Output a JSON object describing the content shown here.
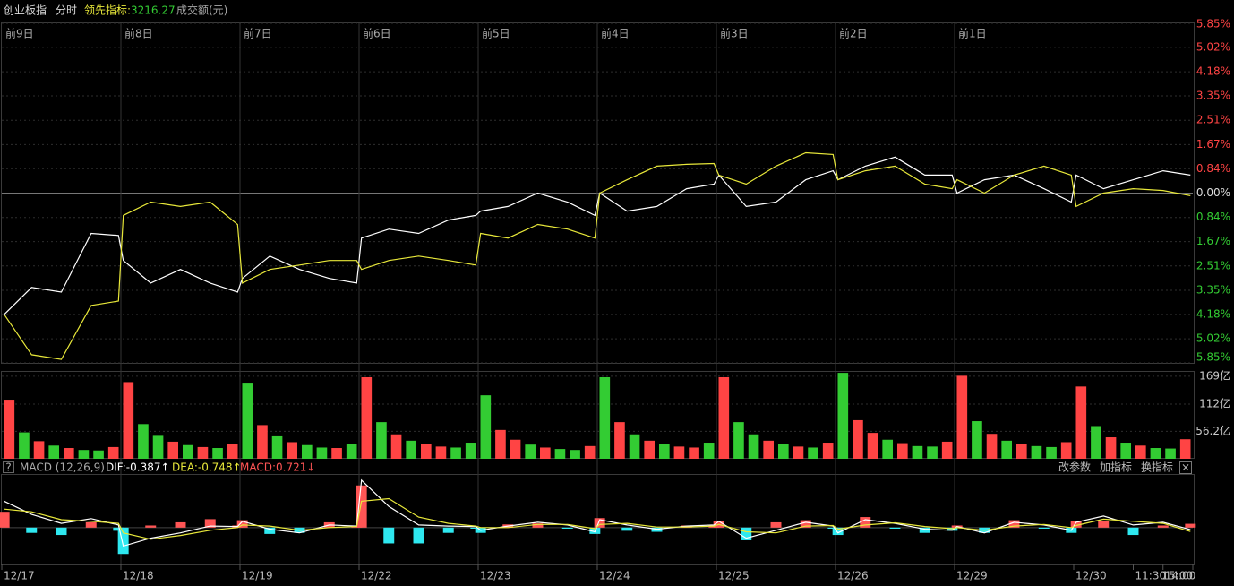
{
  "header": {
    "index_name": "创业板指",
    "mode": "分时",
    "leading_label": "领先指标:",
    "leading_value": "3216.27",
    "amount_label": "成交额(元)"
  },
  "toolbar": {
    "help": "?",
    "buttons": [
      "改参数",
      "加指标",
      "换指标"
    ],
    "close": "×"
  },
  "chart_data": [
    {
      "type": "line",
      "x": [
        0.02,
        0.25,
        0.5,
        0.75,
        0.98,
        1.02,
        1.25,
        1.5,
        1.75,
        1.98,
        2.02,
        2.25,
        2.5,
        2.75,
        2.98,
        3.02,
        3.25,
        3.5,
        3.75,
        3.98,
        4.02,
        4.25,
        4.5,
        4.75,
        4.98,
        5.02,
        5.25,
        5.5,
        5.75,
        5.98,
        6.02,
        6.25,
        6.5,
        6.75,
        6.98,
        7.02,
        7.25,
        7.5,
        7.75,
        7.98,
        8.02,
        8.25,
        8.5,
        8.75,
        8.98,
        9.02,
        9.25,
        9.5,
        9.75,
        9.98
      ],
      "series": [
        {
          "color": "#ffffff",
          "values": [
            -4.18,
            -3.25,
            -3.41,
            -1.39,
            -1.46,
            -2.32,
            -3.1,
            -2.63,
            -3.1,
            -3.41,
            -2.94,
            -2.17,
            -2.63,
            -2.94,
            -3.1,
            -1.55,
            -1.24,
            -1.39,
            -0.93,
            -0.77,
            -0.62,
            -0.46,
            0,
            -0.31,
            -0.77,
            0,
            -0.62,
            -0.46,
            0.15,
            0.31,
            0.62,
            -0.46,
            -0.31,
            0.46,
            0.77,
            0.46,
            0.93,
            1.24,
            0.62,
            0.62,
            0,
            0.46,
            0.62,
            0.15,
            -0.31,
            0.62,
            0.15,
            0.46,
            0.77,
            0.62
          ]
        },
        {
          "color": "#e8e83a",
          "values": [
            -4.18,
            -5.57,
            -5.73,
            -3.87,
            -3.72,
            -0.77,
            -0.31,
            -0.46,
            -0.31,
            -1.08,
            -3.1,
            -2.63,
            -2.48,
            -2.32,
            -2.32,
            -2.63,
            -2.32,
            -2.17,
            -2.32,
            -2.48,
            -1.39,
            -1.55,
            -1.08,
            -1.24,
            -1.55,
            0,
            0.46,
            0.93,
            0.99,
            1.02,
            0.62,
            0.31,
            0.93,
            1.39,
            1.33,
            0.46,
            0.77,
            0.93,
            0.31,
            0.15,
            0.46,
            0,
            0.62,
            0.93,
            0.62,
            -0.46,
            0,
            0.15,
            0.09,
            -0.09
          ]
        }
      ],
      "xlim": [
        0,
        10
      ],
      "xticks": [
        {
          "value": 0,
          "label": "前9日"
        },
        {
          "value": 1,
          "label": "前8日"
        },
        {
          "value": 2,
          "label": "前7日"
        },
        {
          "value": 3,
          "label": "前6日"
        },
        {
          "value": 4,
          "label": "前5日"
        },
        {
          "value": 5,
          "label": "前4日"
        },
        {
          "value": 6,
          "label": "前3日"
        },
        {
          "value": 7,
          "label": "前2日"
        },
        {
          "value": 8,
          "label": "前1日"
        }
      ],
      "ylim": [
        -5.85,
        5.85
      ],
      "yticks": [
        {
          "value": 5.85,
          "label": "5.85%"
        },
        {
          "value": 5.02,
          "label": "5.02%"
        },
        {
          "value": 4.18,
          "label": "4.18%"
        },
        {
          "value": 3.35,
          "label": "3.35%"
        },
        {
          "value": 2.51,
          "label": "2.51%"
        },
        {
          "value": 1.67,
          "label": "1.67%"
        },
        {
          "value": 0.84,
          "label": "0.84%"
        },
        {
          "value": 0,
          "label": "0.00%"
        },
        {
          "value": -0.84,
          "label": "0.84%"
        },
        {
          "value": -1.67,
          "label": "1.67%"
        },
        {
          "value": -2.51,
          "label": "2.51%"
        },
        {
          "value": -3.35,
          "label": "3.35%"
        },
        {
          "value": -4.18,
          "label": "4.18%"
        },
        {
          "value": -5.02,
          "label": "5.02%"
        },
        {
          "value": -5.85,
          "label": "5.85%"
        }
      ],
      "grid": true
    },
    {
      "type": "bar",
      "values": [
        121,
        54,
        36,
        27,
        22,
        18,
        17,
        24,
        157,
        71,
        47,
        35,
        28,
        24,
        22,
        31,
        154,
        69,
        46,
        34,
        28,
        23,
        22,
        31,
        167,
        75,
        50,
        37,
        30,
        25,
        23,
        33,
        130,
        59,
        39,
        29,
        23,
        20,
        18,
        26,
        167,
        75,
        50,
        37,
        30,
        25,
        23,
        33,
        167,
        75,
        50,
        37,
        30,
        25,
        23,
        33,
        176,
        79,
        53,
        39,
        32,
        26,
        25,
        35,
        170,
        77,
        51,
        37,
        31,
        26,
        24,
        34,
        148,
        67,
        44,
        33,
        27,
        22,
        21,
        40
      ],
      "colors": [
        "#f44",
        "#3c3",
        "#f44",
        "#3c3",
        "#f44",
        "#3c3",
        "#3c3",
        "#f44",
        "#f44",
        "#3c3",
        "#3c3",
        "#f44",
        "#3c3",
        "#f44",
        "#3c3",
        "#f44",
        "#3c3",
        "#f44",
        "#3c3",
        "#f44",
        "#3c3",
        "#3c3",
        "#f44",
        "#3c3",
        "#f44",
        "#3c3",
        "#f44",
        "#3c3",
        "#f44",
        "#f44",
        "#3c3",
        "#3c3",
        "#3c3",
        "#f44",
        "#f44",
        "#3c3",
        "#f44",
        "#3c3",
        "#3c3",
        "#f44",
        "#3c3",
        "#f44",
        "#3c3",
        "#f44",
        "#3c3",
        "#f44",
        "#f44",
        "#3c3",
        "#f44",
        "#3c3",
        "#3c3",
        "#f44",
        "#3c3",
        "#f44",
        "#3c3",
        "#f44",
        "#3c3",
        "#f44",
        "#f44",
        "#3c3",
        "#f44",
        "#3c3",
        "#3c3",
        "#f44",
        "#f44",
        "#3c3",
        "#f44",
        "#3c3",
        "#f44",
        "#3c3",
        "#3c3",
        "#f44",
        "#f44",
        "#3c3",
        "#f44",
        "#3c3",
        "#f44",
        "#3c3",
        "#3c3",
        "#f44"
      ],
      "ylim": [
        0,
        178
      ],
      "yticks": [
        {
          "value": 169,
          "label": "169亿"
        },
        {
          "value": 112,
          "label": "112亿"
        },
        {
          "value": 56.2,
          "label": "56.2亿"
        }
      ]
    },
    {
      "type": "line",
      "title": "MACD (12,26,9)",
      "legend_texts": [
        "DIF:-0.387↑",
        "DEA:-0.748↑",
        "MACD:0.721↓"
      ],
      "x": [
        0.02,
        0.25,
        0.5,
        0.75,
        0.98,
        1.02,
        1.25,
        1.5,
        1.75,
        1.98,
        2.02,
        2.25,
        2.5,
        2.75,
        2.98,
        3.02,
        3.25,
        3.5,
        3.75,
        3.98,
        4.02,
        4.25,
        4.5,
        4.75,
        4.98,
        5.02,
        5.25,
        5.5,
        5.75,
        5.98,
        6.02,
        6.25,
        6.5,
        6.75,
        6.98,
        7.02,
        7.25,
        7.5,
        7.75,
        7.98,
        8.02,
        8.25,
        8.5,
        8.75,
        8.98,
        9.02,
        9.25,
        9.5,
        9.75,
        9.98
      ],
      "series": [
        {
          "type": "line",
          "color": "#ffffff",
          "values": [
            5.0,
            2.5,
            0.8,
            1.7,
            0.5,
            -3.5,
            -2.0,
            -1.0,
            0.3,
            0.2,
            1.2,
            -0.3,
            -1.0,
            0.5,
            0.3,
            9.0,
            4.0,
            0.5,
            0.3,
            0.2,
            -0.5,
            0.3,
            1.0,
            0.5,
            -0.8,
            1.5,
            0.5,
            -0.3,
            0.3,
            0.5,
            1.2,
            -2.0,
            -0.5,
            1.0,
            0.3,
            -1.0,
            1.5,
            0.8,
            -0.3,
            -0.5,
            0.2,
            -1.0,
            1.0,
            0.5,
            -0.5,
            1.0,
            2.2,
            0.5,
            1.0,
            -0.387
          ]
        },
        {
          "type": "line",
          "color": "#e8e83a",
          "values": [
            3.5,
            3.0,
            1.5,
            1.2,
            0.8,
            -1.0,
            -2.2,
            -1.5,
            -0.5,
            0.0,
            0.5,
            0.3,
            -0.5,
            0.0,
            0.2,
            5.0,
            5.5,
            2.0,
            0.8,
            0.3,
            0.0,
            0.0,
            0.6,
            0.6,
            -0.2,
            0.6,
            0.8,
            0.1,
            0.1,
            0.3,
            0.6,
            -0.8,
            -1.0,
            0.3,
            0.4,
            -0.3,
            0.5,
            0.9,
            0.2,
            -0.2,
            0.0,
            -0.5,
            0.3,
            0.6,
            0.0,
            0.4,
            1.6,
            1.2,
            0.8,
            -0.748
          ]
        },
        {
          "type": "bar",
          "color": "#f55",
          "down_color": "#2ee8f0",
          "values": [
            3.0,
            -1.0,
            -1.4,
            1.0,
            -0.6,
            -5.0,
            0.4,
            1.0,
            1.6,
            0.4,
            1.4,
            -1.2,
            -1.0,
            1.0,
            0.2,
            8.0,
            -3.0,
            -3.0,
            -1.0,
            -0.2,
            -1.0,
            0.6,
            0.8,
            -0.2,
            -1.2,
            1.8,
            -0.6,
            -0.8,
            0.4,
            0.4,
            1.2,
            -2.4,
            1.0,
            1.4,
            -0.2,
            -1.4,
            2.0,
            -0.2,
            -1.0,
            -0.6,
            0.4,
            -1.0,
            1.4,
            -0.2,
            -1.0,
            1.2,
            1.2,
            -1.4,
            0.4,
            0.721
          ]
        }
      ],
      "xlim": [
        0,
        10
      ],
      "xticks": [
        {
          "value": 0,
          "label": "12/17"
        },
        {
          "value": 1,
          "label": "12/18"
        },
        {
          "value": 2,
          "label": "12/19"
        },
        {
          "value": 3,
          "label": "12/22"
        },
        {
          "value": 4,
          "label": "12/23"
        },
        {
          "value": 5,
          "label": "12/24"
        },
        {
          "value": 6,
          "label": "12/25"
        },
        {
          "value": 7,
          "label": "12/26"
        },
        {
          "value": 8,
          "label": "12/29"
        },
        {
          "value": 9,
          "label": "12/30"
        },
        {
          "value": 9.5,
          "label": "11:30"
        },
        {
          "value": 9.75,
          "label": "14:00"
        },
        {
          "value": 10,
          "label": "15:00"
        }
      ],
      "ylim": [
        -7,
        10
      ]
    }
  ]
}
